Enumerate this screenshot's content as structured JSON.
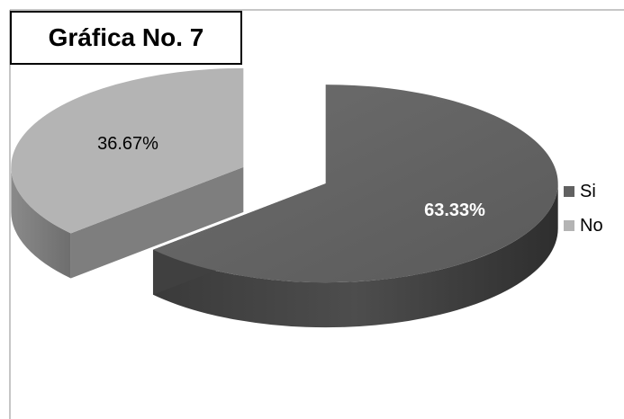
{
  "chart_data": {
    "type": "pie",
    "title": "Gráfica No. 7",
    "categories": [
      "Si",
      "No"
    ],
    "values": [
      63.33,
      36.67
    ],
    "data_labels": [
      "63.33%",
      "36.67%"
    ],
    "colors": {
      "Si": "#616161",
      "No": "#b4b4b4"
    },
    "style": "3d-exploded",
    "legend_position": "right"
  }
}
